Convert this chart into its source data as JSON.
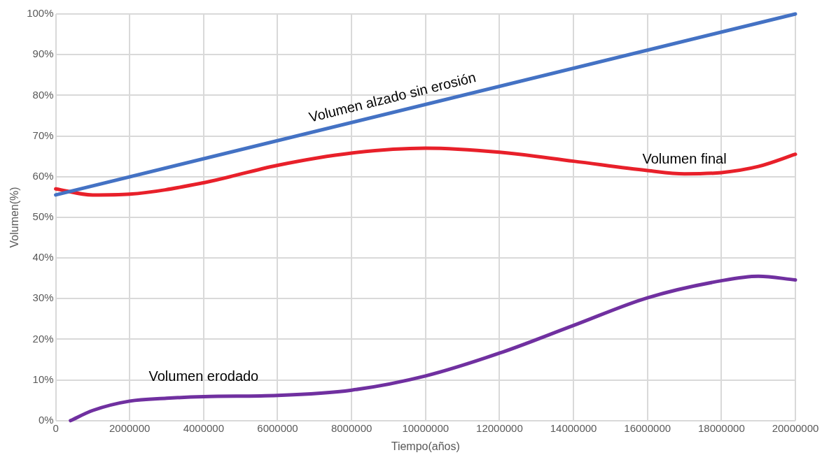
{
  "chart_data": {
    "type": "line",
    "xlabel": "Tiempo(años)",
    "ylabel": "Volumen(%)",
    "xlim": [
      0,
      20000000
    ],
    "xticks": [
      0,
      2000000,
      4000000,
      6000000,
      8000000,
      10000000,
      12000000,
      14000000,
      16000000,
      18000000,
      20000000
    ],
    "ylim": [
      0,
      100
    ],
    "yticks": [
      {
        "value": 0,
        "label": "0%"
      },
      {
        "value": 10,
        "label": "10%"
      },
      {
        "value": 20,
        "label": "20%"
      },
      {
        "value": 30,
        "label": "30%"
      },
      {
        "value": 40,
        "label": "40%"
      },
      {
        "value": 50,
        "label": "50%"
      },
      {
        "value": 60,
        "label": "60%"
      },
      {
        "value": 70,
        "label": "70%"
      },
      {
        "value": 80,
        "label": "80%"
      },
      {
        "value": 90,
        "label": "90%"
      },
      {
        "value": 100,
        "label": "100%"
      }
    ],
    "grid": true,
    "legend": false,
    "marker": "none",
    "line_style": "solid",
    "series": [
      {
        "name": "Volumen alzado sin erosión",
        "color": "#4472c4",
        "x": [
          0,
          20000000
        ],
        "values": [
          55.5,
          100
        ]
      },
      {
        "name": "Volumen final",
        "color": "#e8202a",
        "x": [
          0,
          1000000,
          2000000,
          4000000,
          6000000,
          8000000,
          10000000,
          12000000,
          14000000,
          16000000,
          17000000,
          18000000,
          19000000,
          20000000
        ],
        "values": [
          57,
          55.5,
          55.7,
          58.5,
          62.8,
          65.8,
          67,
          66,
          63.8,
          61.5,
          60.7,
          61,
          62.5,
          65.5
        ]
      },
      {
        "name": "Volumen erodado",
        "color": "#7030a0",
        "x": [
          400000,
          1000000,
          2000000,
          3000000,
          4000000,
          6000000,
          8000000,
          10000000,
          12000000,
          14000000,
          16000000,
          18000000,
          19000000,
          20000000
        ],
        "values": [
          0,
          2.5,
          4.8,
          5.5,
          5.9,
          6.2,
          7.5,
          11,
          16.6,
          23.4,
          30.2,
          34.4,
          35.5,
          34.6
        ]
      }
    ]
  }
}
